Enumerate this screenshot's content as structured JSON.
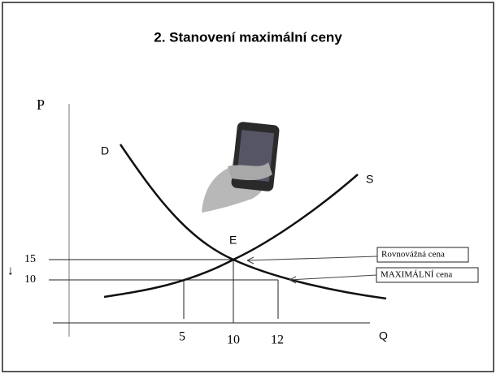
{
  "header": {
    "title": "2. Stanovení maximální ceny"
  },
  "axes": {
    "y_label": "P",
    "x_label": "Q"
  },
  "curves": {
    "demand": "D",
    "supply": "S",
    "equilibrium": "E"
  },
  "y_ticks": [
    "15",
    "10"
  ],
  "y_arrow": "↓",
  "x_ticks": [
    "5",
    "10",
    "12"
  ],
  "callouts": [
    "Rovnovážná cena",
    "MAXIMÁLNÍ cena"
  ]
}
